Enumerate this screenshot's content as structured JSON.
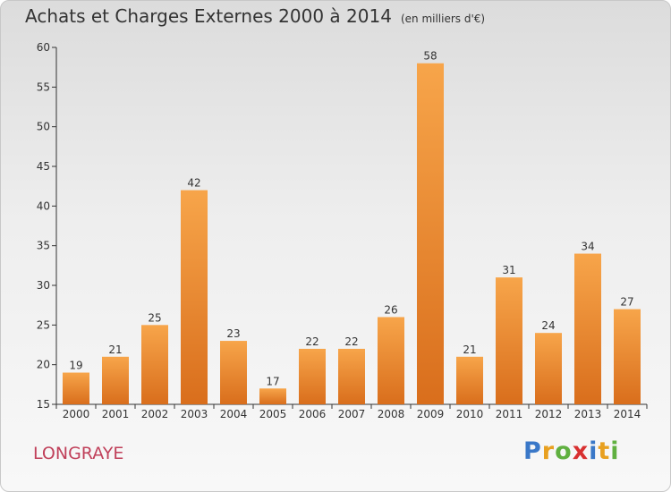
{
  "header": {
    "title": "Achats et Charges Externes 2000 à 2014",
    "unit": "(en milliers d'€)"
  },
  "commune": "LONGRAYE",
  "logo": {
    "letters": [
      "P",
      "r",
      "o",
      "x",
      "i",
      "t",
      "i"
    ]
  },
  "colors": {
    "bar_light": "#f7a54a",
    "bar_dark": "#d96e1c",
    "axis": "#333333"
  },
  "chart_data": {
    "type": "bar",
    "title": "Achats et Charges Externes 2000 à 2014",
    "subtitle": "(en milliers d'€)",
    "categories": [
      "2000",
      "2001",
      "2002",
      "2003",
      "2004",
      "2005",
      "2006",
      "2007",
      "2008",
      "2009",
      "2010",
      "2011",
      "2012",
      "2013",
      "2014"
    ],
    "values": [
      19,
      21,
      25,
      42,
      23,
      17,
      22,
      22,
      26,
      58,
      21,
      31,
      24,
      34,
      27
    ],
    "ylim": [
      15,
      60
    ],
    "yticks": [
      15,
      20,
      25,
      30,
      35,
      40,
      45,
      50,
      55,
      60
    ],
    "grid": false,
    "xlabel": "",
    "ylabel": ""
  }
}
